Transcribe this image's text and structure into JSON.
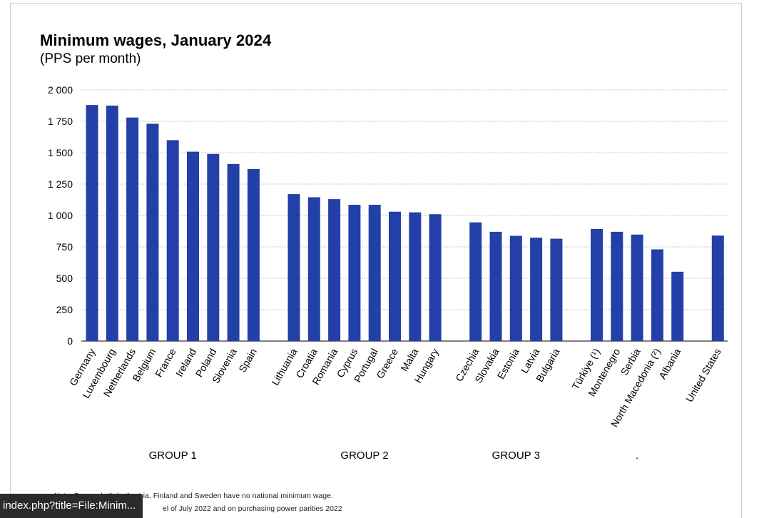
{
  "title": "Minimum wages, January 2024",
  "subtitle": "(PPS per month)",
  "colors": {
    "bar": "#2340a8",
    "grid": "#bfbfbf",
    "axis": "#000000"
  },
  "chart_data": {
    "type": "bar",
    "ylim": [
      0,
      2000
    ],
    "yticks": [
      0,
      250,
      500,
      750,
      1000,
      1250,
      1500,
      1750,
      2000
    ],
    "ytick_labels": [
      "0",
      "250",
      "500",
      "750",
      "1 000",
      "1 250",
      "1 500",
      "1 750",
      "2 000"
    ],
    "grid": true,
    "groups": [
      {
        "label": "GROUP 1",
        "categories": [
          "Germany",
          "Luxembourg",
          "Netherlands",
          "Belgium",
          "France",
          "Ireland",
          "Poland",
          "Slovenia",
          "Spain"
        ],
        "values": [
          1880,
          1875,
          1780,
          1730,
          1600,
          1508,
          1490,
          1410,
          1370
        ]
      },
      {
        "label": "GROUP 2",
        "categories": [
          "Lithuania",
          "Croatia",
          "Romania",
          "Cyprus",
          "Portugal",
          "Greece",
          "Malta",
          "Hungary"
        ],
        "values": [
          1170,
          1145,
          1130,
          1085,
          1085,
          1030,
          1025,
          1010
        ]
      },
      {
        "label": "GROUP 3",
        "categories": [
          "Czechia",
          "Slovakia",
          "Estonia",
          "Latvia",
          "Bulgaria"
        ],
        "values": [
          945,
          870,
          838,
          823,
          815
        ]
      },
      {
        "label": ".",
        "categories": [
          "Türkiye (¹)",
          "Montenegro",
          "Serbia",
          "North Macedonia (²)",
          "Albania"
        ],
        "values": [
          892,
          870,
          848,
          730,
          552
        ]
      },
      {
        "label": "",
        "categories": [
          "United States"
        ],
        "values": [
          840
        ]
      }
    ]
  },
  "notes": {
    "line1": "Note: Denmark, Italy, Austria, Finland and Sweden have no national minimum wage.",
    "line2": "el of July 2022 and on purchasing power parities 2022"
  },
  "status_link": "index.php?title=File:Minim..."
}
